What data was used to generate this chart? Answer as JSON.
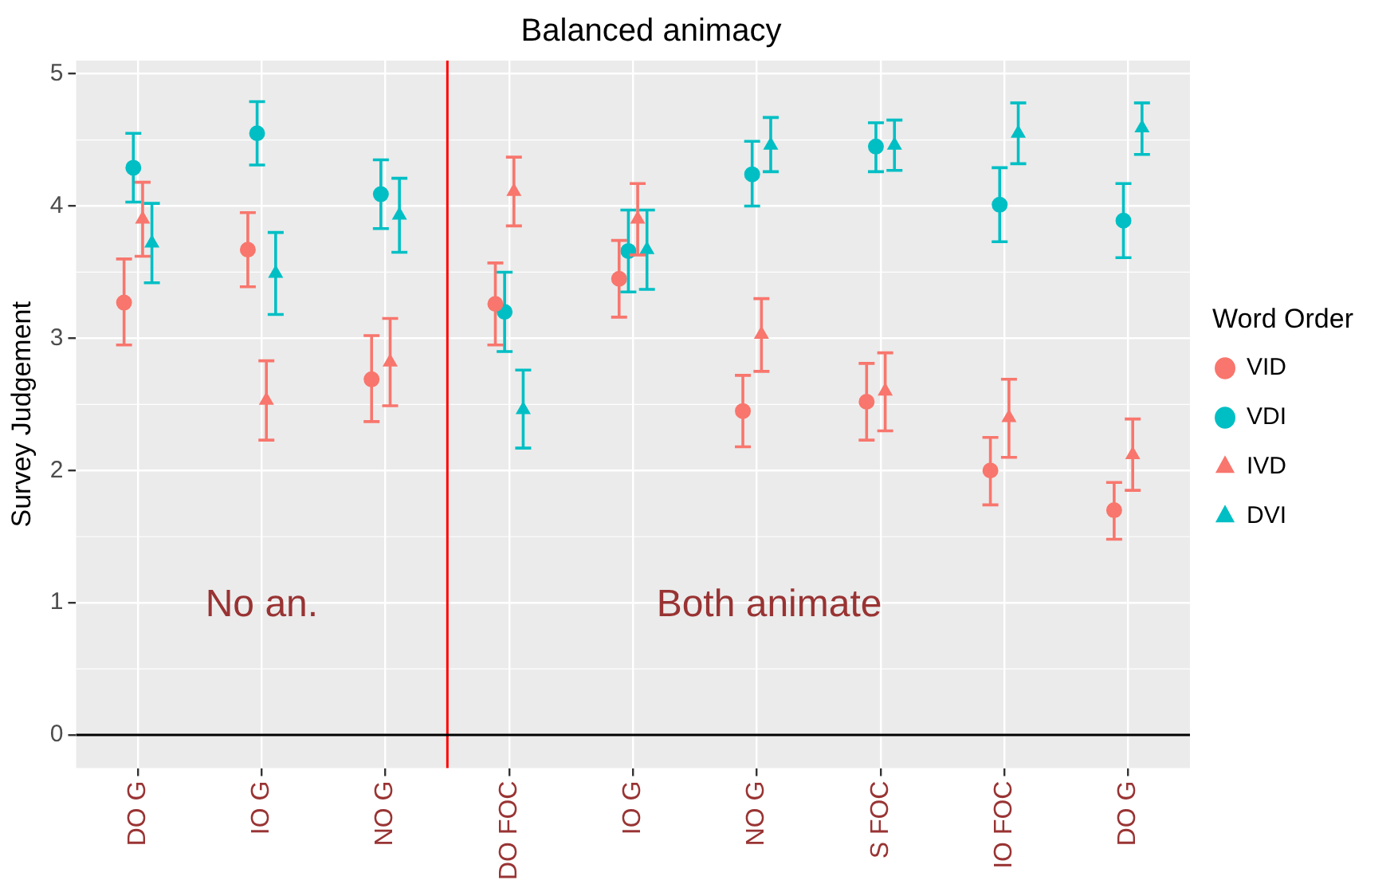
{
  "chart_data": {
    "type": "scatter",
    "title": "Balanced animacy",
    "ylabel": "Survey Judgement",
    "legend_title": "Word Order",
    "categories": [
      "DO G",
      "IO G",
      "NO G",
      "DO FOC",
      "IO G",
      "NO G",
      "S FOC",
      "IO FOC",
      "DO G"
    ],
    "series": [
      {
        "name": "VID",
        "color": "#f8766d",
        "marker": "circle",
        "values": [
          3.27,
          3.67,
          2.69,
          3.26,
          3.45,
          2.45,
          2.52,
          2.0,
          1.7
        ],
        "errors": [
          [
            2.95,
            3.6
          ],
          [
            3.39,
            3.95
          ],
          [
            2.37,
            3.02
          ],
          [
            2.95,
            3.57
          ],
          [
            3.16,
            3.74
          ],
          [
            2.18,
            2.72
          ],
          [
            2.23,
            2.81
          ],
          [
            1.74,
            2.25
          ],
          [
            1.48,
            1.91
          ]
        ]
      },
      {
        "name": "VDI",
        "color": "#00bfc4",
        "marker": "circle",
        "values": [
          4.29,
          4.55,
          4.09,
          3.2,
          3.66,
          4.24,
          4.45,
          4.01,
          3.89
        ],
        "errors": [
          [
            4.03,
            4.55
          ],
          [
            4.31,
            4.79
          ],
          [
            3.83,
            4.35
          ],
          [
            2.9,
            3.5
          ],
          [
            3.35,
            3.97
          ],
          [
            4.0,
            4.49
          ],
          [
            4.26,
            4.63
          ],
          [
            3.73,
            4.29
          ],
          [
            3.61,
            4.17
          ]
        ]
      },
      {
        "name": "IVD",
        "color": "#f8766d",
        "marker": "triangle",
        "values": [
          3.9,
          2.53,
          2.82,
          4.11,
          3.9,
          3.03,
          2.6,
          2.4,
          2.12
        ],
        "errors": [
          [
            3.62,
            4.18
          ],
          [
            2.23,
            2.83
          ],
          [
            2.49,
            3.15
          ],
          [
            3.85,
            4.37
          ],
          [
            3.63,
            4.17
          ],
          [
            2.75,
            3.3
          ],
          [
            2.3,
            2.89
          ],
          [
            2.1,
            2.69
          ],
          [
            1.85,
            2.39
          ]
        ]
      },
      {
        "name": "DVI",
        "color": "#00bfc4",
        "marker": "triangle",
        "values": [
          3.72,
          3.49,
          3.93,
          2.46,
          3.67,
          4.46,
          4.46,
          4.55,
          4.59
        ],
        "errors": [
          [
            3.42,
            4.02
          ],
          [
            3.18,
            3.8
          ],
          [
            3.65,
            4.21
          ],
          [
            2.17,
            2.76
          ],
          [
            3.37,
            3.97
          ],
          [
            4.26,
            4.67
          ],
          [
            4.27,
            4.65
          ],
          [
            4.32,
            4.78
          ],
          [
            4.39,
            4.78
          ]
        ]
      }
    ],
    "ylim": [
      -0.25,
      5.1
    ],
    "yticks": [
      0,
      1,
      2,
      3,
      4,
      5
    ],
    "grid": true,
    "legend": "right",
    "ref_lines": [
      {
        "axis": "x",
        "value": "DO FOC",
        "color": "#ff0000"
      },
      {
        "axis": "y",
        "value": 0,
        "color": "#000000"
      }
    ],
    "annotations": [
      "No an.",
      "Both animate"
    ]
  }
}
